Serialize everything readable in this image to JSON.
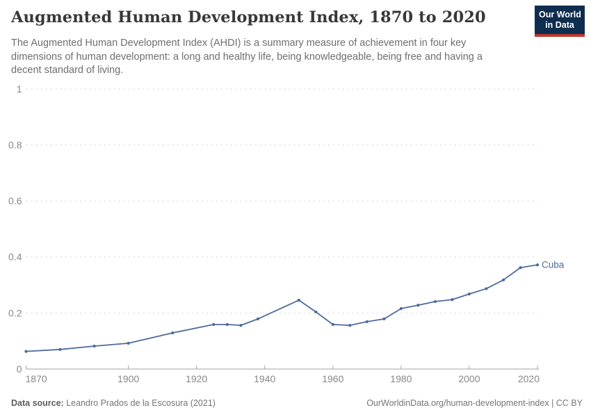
{
  "header": {
    "title": "Augmented Human Development Index, 1870 to 2020",
    "subtitle": "The Augmented Human Development Index (AHDI) is a summary measure of achievement in four key dimensions of human development: a long and healthy life, being knowledgeable, being free and having a decent standard of living.",
    "logo": {
      "line1": "Our World",
      "line2": "in Data",
      "bg_color": "#0f2d4e",
      "accent_color": "#c0392b"
    }
  },
  "footer": {
    "datasource_label": "Data source:",
    "datasource_value": "Leandro Prados de la Escosura (2021)",
    "link_text": "OurWorldinData.org/human-development-index | CC BY"
  },
  "colors": {
    "series_line": "#4C6A9C",
    "gridline": "#dcdcdc",
    "axis_line": "#a3a3a3",
    "tick_label": "#878787"
  },
  "chart_data": {
    "type": "line",
    "title": "Augmented Human Development Index, 1870 to 2020",
    "xlabel": "",
    "ylabel": "",
    "xlim": [
      1870,
      2020
    ],
    "ylim": [
      0,
      1
    ],
    "x_ticks": [
      1870,
      1900,
      1920,
      1940,
      1960,
      1980,
      2000,
      2020
    ],
    "y_ticks": [
      0,
      0.2,
      0.4,
      0.6,
      0.8,
      1
    ],
    "grid": "horizontal-dashed",
    "legend_position": "end-of-line-label",
    "series": [
      {
        "name": "Cuba",
        "color": "#4C6A9C",
        "x": [
          1870,
          1880,
          1890,
          1900,
          1913,
          1925,
          1929,
          1933,
          1938,
          1950,
          1955,
          1960,
          1965,
          1970,
          1975,
          1980,
          1985,
          1990,
          1995,
          2000,
          2005,
          2010,
          2015,
          2020
        ],
        "values": [
          0.063,
          0.07,
          0.082,
          0.092,
          0.129,
          0.159,
          0.159,
          0.156,
          0.179,
          0.246,
          0.204,
          0.159,
          0.156,
          0.169,
          0.179,
          0.216,
          0.228,
          0.241,
          0.248,
          0.268,
          0.287,
          0.318,
          0.362,
          0.372
        ]
      }
    ]
  }
}
